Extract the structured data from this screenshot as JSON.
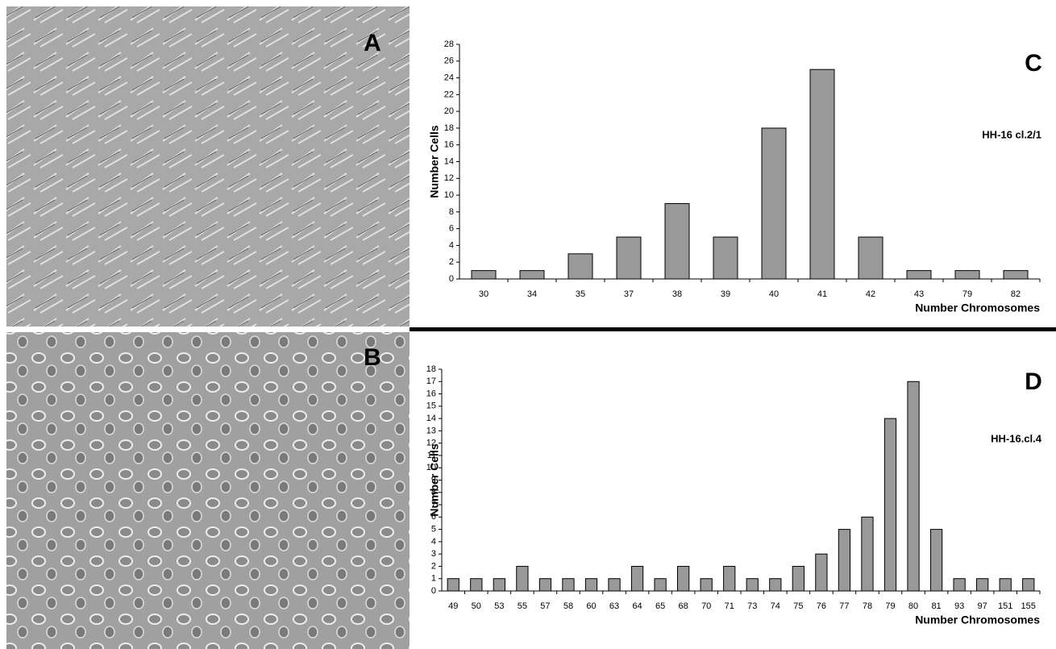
{
  "chart_data": [
    {
      "type": "bar",
      "panel": "C",
      "annotation": "HH-16 cl.2/1",
      "x_label": "Number Chromosomes",
      "y_label": "Number Cells",
      "categories": [
        "30",
        "34",
        "35",
        "37",
        "38",
        "39",
        "40",
        "41",
        "42",
        "43",
        "79",
        "82"
      ],
      "values": [
        1,
        1,
        3,
        5,
        9,
        5,
        18,
        25,
        5,
        1,
        1,
        1
      ],
      "color": "#999999",
      "ylim": [
        0,
        28
      ],
      "yticks": [
        0,
        2,
        4,
        6,
        8,
        10,
        12,
        14,
        16,
        18,
        20,
        22,
        24,
        26,
        28
      ]
    },
    {
      "type": "bar",
      "panel": "D",
      "annotation": "HH-16.cl.4",
      "x_label": "Number Chromosomes",
      "y_label": "Number Cells",
      "categories": [
        "49",
        "50",
        "53",
        "55",
        "57",
        "58",
        "60",
        "63",
        "64",
        "65",
        "68",
        "70",
        "71",
        "73",
        "74",
        "75",
        "76",
        "77",
        "78",
        "79",
        "80",
        "81",
        "93",
        "97",
        "151",
        "155"
      ],
      "values": [
        1,
        1,
        1,
        2,
        1,
        1,
        1,
        1,
        2,
        1,
        2,
        1,
        2,
        1,
        1,
        2,
        3,
        5,
        6,
        14,
        17,
        5,
        1,
        1,
        1,
        1
      ],
      "color": "#999999",
      "ylim": [
        0,
        18
      ],
      "yticks": [
        0,
        1,
        2,
        3,
        4,
        5,
        6,
        7,
        8,
        9,
        10,
        11,
        12,
        13,
        14,
        15,
        16,
        17,
        18
      ]
    }
  ],
  "images": [
    {
      "label": "A"
    },
    {
      "label": "B"
    }
  ]
}
